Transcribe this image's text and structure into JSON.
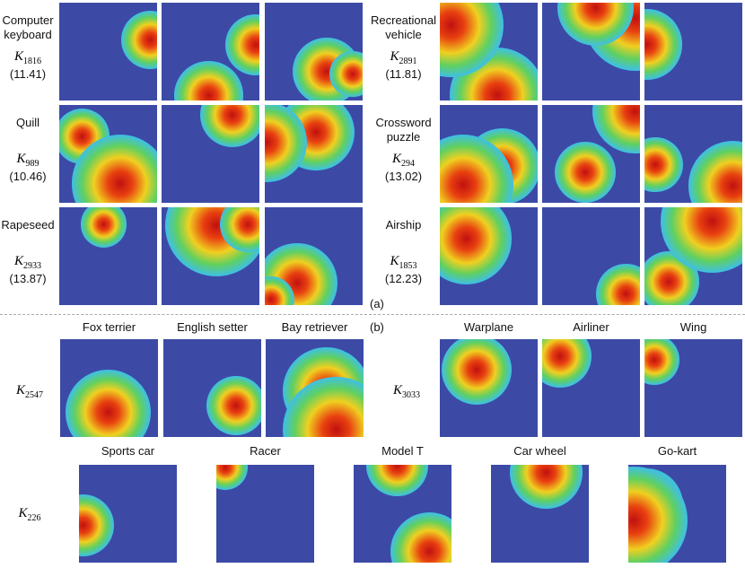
{
  "part_a": {
    "label": "(a)",
    "items": [
      {
        "label": "Computer keyboard",
        "kernel": {
          "symbol": "K",
          "index": "1816"
        },
        "score": "(11.41)"
      },
      {
        "label": "Quill",
        "kernel": {
          "symbol": "K",
          "index": "989"
        },
        "score": "(10.46)"
      },
      {
        "label": "Rapeseed",
        "kernel": {
          "symbol": "K",
          "index": "2933"
        },
        "score": "(13.87)"
      },
      {
        "label": "Recreational vehicle",
        "kernel": {
          "symbol": "K",
          "index": "2891"
        },
        "score": "(11.81)"
      },
      {
        "label": "Crossword puzzle",
        "kernel": {
          "symbol": "K",
          "index": "294"
        },
        "score": "(13.02)"
      },
      {
        "label": "Airship",
        "kernel": {
          "symbol": "K",
          "index": "1853"
        },
        "score": "(12.23)"
      }
    ]
  },
  "part_b": {
    "label": "(b)",
    "groups": [
      {
        "kernel": {
          "symbol": "K",
          "index": "2547"
        },
        "images": [
          "Fox terrier",
          "English setter",
          "Bay retriever"
        ]
      },
      {
        "kernel": {
          "symbol": "K",
          "index": "3033"
        },
        "images": [
          "Warplane",
          "Airliner",
          "Wing"
        ]
      },
      {
        "kernel": {
          "symbol": "K",
          "index": "226"
        },
        "images": [
          "Sports car",
          "Racer",
          "Model T",
          "Car wheel",
          "Go-kart"
        ]
      }
    ]
  }
}
